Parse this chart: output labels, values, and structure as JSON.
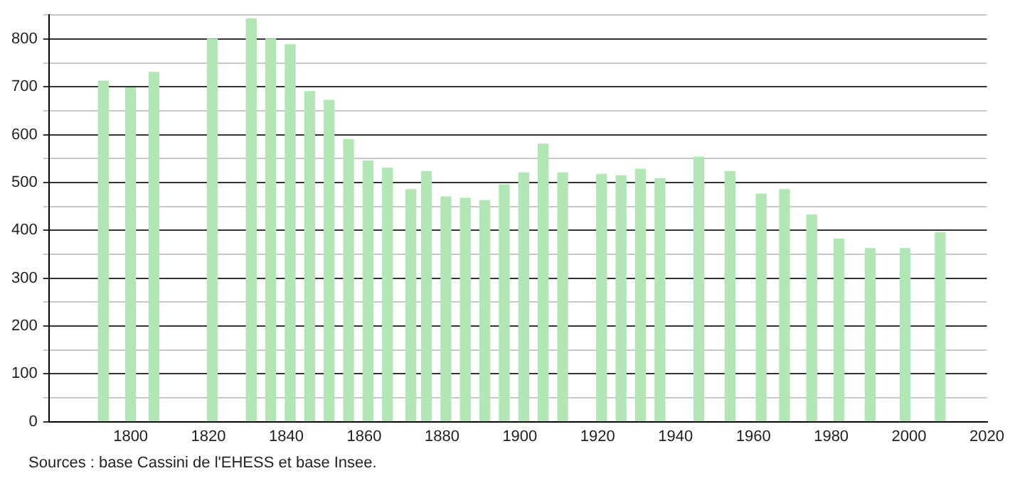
{
  "chart_data": {
    "type": "bar",
    "x": [
      1793,
      1800,
      1806,
      1821,
      1831,
      1836,
      1841,
      1846,
      1851,
      1856,
      1861,
      1866,
      1872,
      1876,
      1881,
      1886,
      1891,
      1896,
      1901,
      1906,
      1911,
      1921,
      1926,
      1931,
      1936,
      1946,
      1954,
      1962,
      1968,
      1975,
      1982,
      1990,
      1999,
      2008
    ],
    "values": [
      712,
      698,
      730,
      800,
      842,
      800,
      788,
      690,
      672,
      590,
      545,
      530,
      485,
      523,
      470,
      467,
      462,
      495,
      520,
      580,
      520,
      517,
      514,
      528,
      508,
      553,
      523,
      476,
      485,
      432,
      382,
      362,
      362,
      395
    ],
    "color": "#b3e6b5",
    "xlim": [
      1779,
      2020
    ],
    "xticks": [
      1800,
      1820,
      1840,
      1860,
      1880,
      1900,
      1920,
      1940,
      1960,
      1980,
      2000,
      2020
    ],
    "ylim": [
      0,
      850
    ],
    "yticks": [
      0,
      {
        "value": 50,
        "label": null
      },
      100,
      {
        "value": 150,
        "label": null
      },
      200,
      {
        "value": 250,
        "label": null
      },
      300,
      {
        "value": 350,
        "label": null
      },
      400,
      {
        "value": 450,
        "label": null
      },
      500,
      {
        "value": 550,
        "label": null
      },
      600,
      {
        "value": 650,
        "label": null
      },
      700,
      {
        "value": 750,
        "label": null
      },
      800,
      {
        "value": 850,
        "label": null
      }
    ],
    "grid": "y",
    "annotations": [
      "Sources : base Cassini de l'EHESS et base Insee."
    ]
  }
}
